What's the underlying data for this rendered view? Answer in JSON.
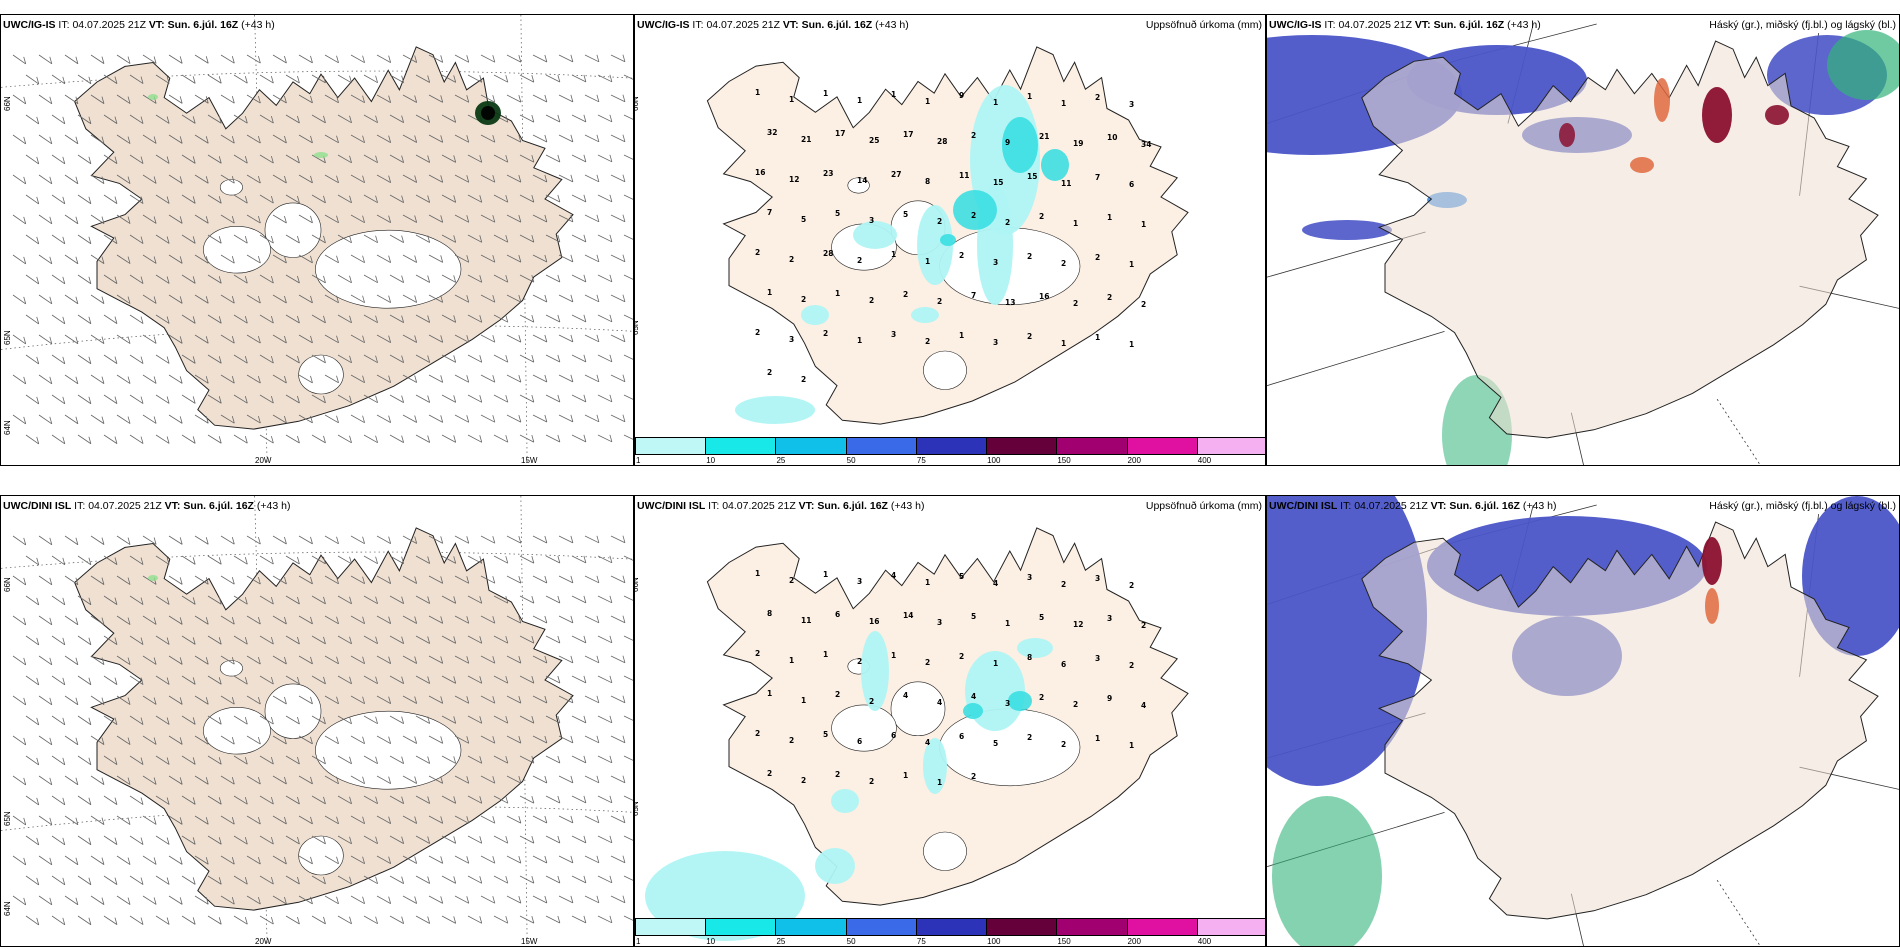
{
  "row1": {
    "model": "UWC/IG-IS",
    "it_label": "IT:",
    "it": "04.07.2025 21Z",
    "vt_label": "VT:",
    "vt": "Sun. 6.júl. 16Z",
    "lead": "(+43 h)"
  },
  "row2": {
    "model": "UWC/DINI ISL",
    "it_label": "IT:",
    "it": "04.07.2025 21Z",
    "vt_label": "VT:",
    "vt": "Sun. 6.júl. 16Z",
    "lead": "(+43 h)"
  },
  "precip_title": "Uppsöfnuð úrkoma (mm)",
  "cloud_title": "Háský (gr.), miðský (fj.bl.) og lágský (bl.)",
  "axis": {
    "lon_20w": "20W",
    "lon_15w": "15W",
    "lat_66n": "66N",
    "lat_65n": "65N",
    "lat_64n": "64N"
  },
  "legend": {
    "ticks": [
      "1",
      "10",
      "25",
      "50",
      "75",
      "100",
      "150",
      "200",
      "400"
    ],
    "colors": [
      "#bff7f7",
      "#19e8e8",
      "#10c0e8",
      "#3a6ae8",
      "#2c33b8",
      "#66003a",
      "#a00070",
      "#e010a0",
      "#f4b0f0"
    ]
  },
  "colors": {
    "land": "#efe0d2",
    "precip_land": "#fcefe3",
    "precip_light": "#aff4f4",
    "precip_mid": "#33dde0",
    "cloud_mid": "#4a55c8",
    "cloud_low": "#3b8ee8",
    "cloud_high_green": "#32b47a",
    "cloud_red": "#8a1030",
    "cloud_orange": "#e06a40"
  },
  "precip_top_values": [
    "1",
    "1",
    "1",
    "1",
    "1",
    "1",
    "9",
    "1",
    "1",
    "1",
    "2",
    "3",
    "32",
    "21",
    "17",
    "25",
    "17",
    "28",
    "2",
    "9",
    "21",
    "19",
    "10",
    "34",
    "16",
    "12",
    "23",
    "14",
    "27",
    "8",
    "11",
    "15",
    "15",
    "11",
    "7",
    "6",
    "7",
    "5",
    "5",
    "3",
    "5",
    "2",
    "2",
    "2",
    "2",
    "1",
    "1",
    "1",
    "2",
    "2",
    "28",
    "2",
    "1",
    "1",
    "2",
    "3",
    "2",
    "2",
    "2",
    "1",
    "1",
    "2",
    "1",
    "2",
    "2",
    "2",
    "7",
    "13",
    "16",
    "2",
    "2",
    "2",
    "2",
    "3",
    "2",
    "1",
    "3",
    "2",
    "1",
    "3",
    "2",
    "1",
    "1",
    "1",
    "2",
    "2"
  ],
  "precip_bottom_values": [
    "1",
    "2",
    "1",
    "3",
    "4",
    "1",
    "5",
    "4",
    "3",
    "2",
    "3",
    "2",
    "8",
    "11",
    "6",
    "16",
    "14",
    "3",
    "5",
    "1",
    "5",
    "12",
    "3",
    "2",
    "2",
    "1",
    "1",
    "2",
    "1",
    "2",
    "2",
    "1",
    "8",
    "6",
    "3",
    "2",
    "1",
    "1",
    "2",
    "2",
    "4",
    "4",
    "4",
    "3",
    "2",
    "2",
    "9",
    "4",
    "2",
    "2",
    "5",
    "6",
    "6",
    "4",
    "6",
    "5",
    "2",
    "2",
    "1",
    "1",
    "2",
    "2",
    "2",
    "2",
    "1",
    "1",
    "2"
  ]
}
